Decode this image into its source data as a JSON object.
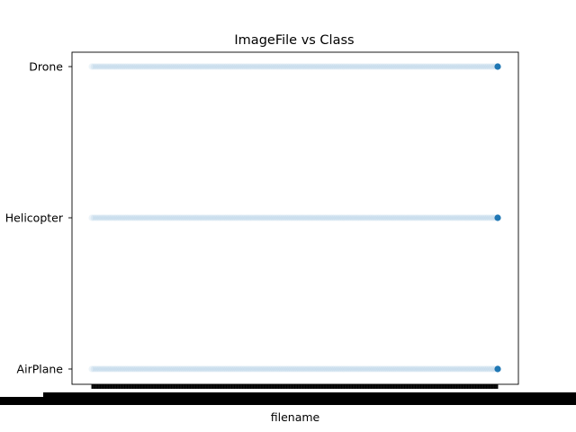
{
  "chart_data": {
    "type": "scatter",
    "title": "ImageFile vs Class",
    "xlabel": "filename",
    "ylabel": "",
    "categories": [
      "AirPlane",
      "Helicopter",
      "Drone"
    ],
    "grid": false,
    "legend": "none",
    "x_tick_labels": "overlapping filename labels (illegible)",
    "series": [
      {
        "color": "#1f77b4",
        "x_range_fraction": [
          0.0,
          1.0
        ],
        "points_per_class": [
          {
            "class": "Drone",
            "count": 200
          },
          {
            "class": "Helicopter",
            "count": 200
          },
          {
            "class": "AirPlane",
            "count": 200
          }
        ]
      }
    ]
  }
}
